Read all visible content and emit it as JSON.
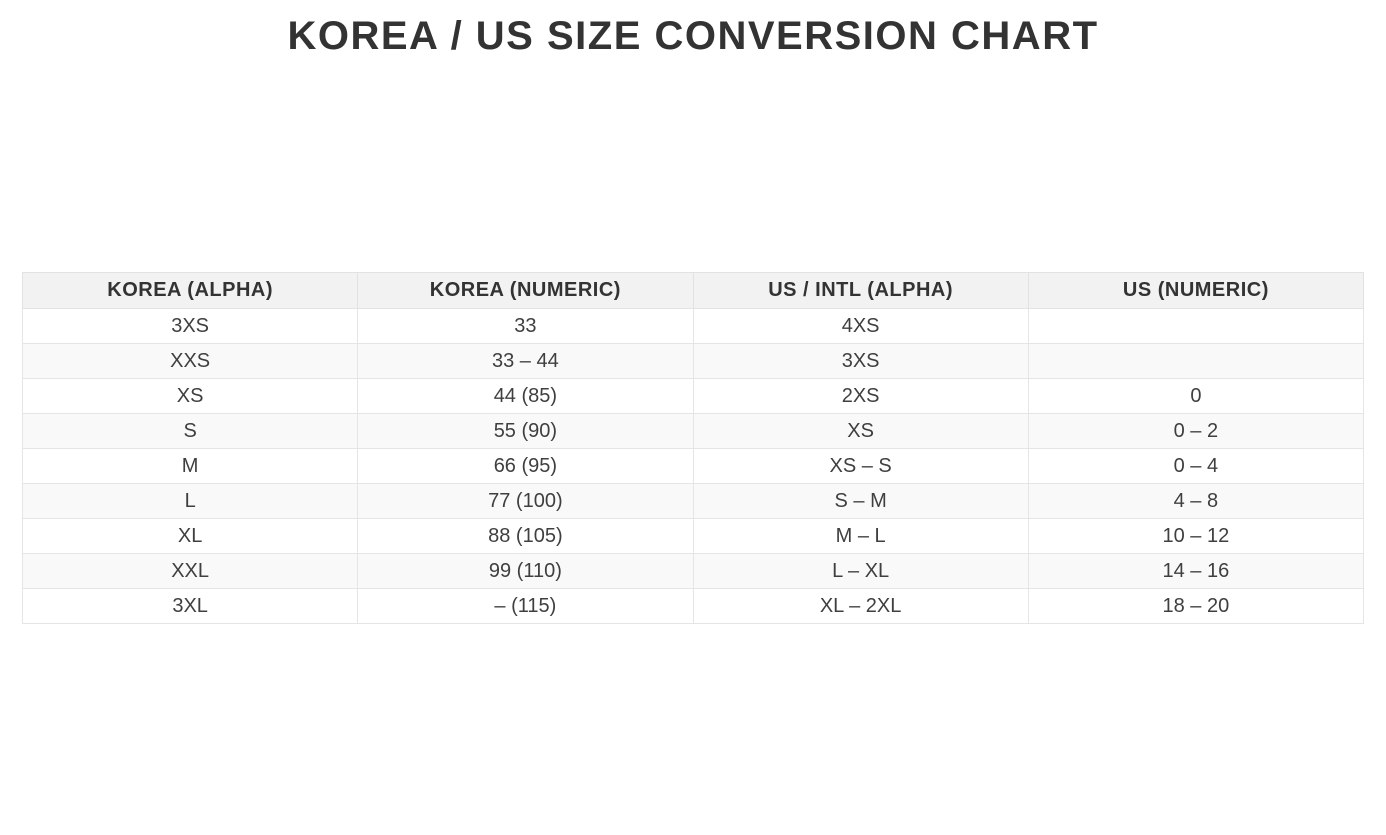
{
  "page": {
    "title": "KOREA / US SIZE CONVERSION CHART"
  },
  "table": {
    "columns": [
      "KOREA (ALPHA)",
      "KOREA (NUMERIC)",
      "US / INTL (ALPHA)",
      "US (NUMERIC)"
    ],
    "rows": [
      [
        "3XS",
        "33",
        "4XS",
        ""
      ],
      [
        "XXS",
        "33 – 44",
        "3XS",
        ""
      ],
      [
        "XS",
        "44 (85)",
        "2XS",
        "0"
      ],
      [
        "S",
        "55 (90)",
        "XS",
        "0 – 2"
      ],
      [
        "M",
        "66 (95)",
        "XS – S",
        "0 – 4"
      ],
      [
        "L",
        "77 (100)",
        "S – M",
        "4 – 8"
      ],
      [
        "XL",
        "88 (105)",
        "M – L",
        "10 – 12"
      ],
      [
        "XXL",
        "99 (110)",
        "L – XL",
        "14 – 16"
      ],
      [
        "3XL",
        "– (115)",
        "XL – 2XL",
        "18 – 20"
      ]
    ]
  },
  "chart_data": {
    "type": "table",
    "title": "KOREA / US SIZE CONVERSION CHART",
    "columns": [
      "KOREA (ALPHA)",
      "KOREA (NUMERIC)",
      "US / INTL (ALPHA)",
      "US (NUMERIC)"
    ],
    "rows": [
      [
        "3XS",
        "33",
        "4XS",
        ""
      ],
      [
        "XXS",
        "33 – 44",
        "3XS",
        ""
      ],
      [
        "XS",
        "44 (85)",
        "2XS",
        "0"
      ],
      [
        "S",
        "55 (90)",
        "XS",
        "0 – 2"
      ],
      [
        "M",
        "66 (95)",
        "XS – S",
        "0 – 4"
      ],
      [
        "L",
        "77 (100)",
        "S – M",
        "4 – 8"
      ],
      [
        "XL",
        "88 (105)",
        "M – L",
        "10 – 12"
      ],
      [
        "XXL",
        "99 (110)",
        "L – XL",
        "14 – 16"
      ],
      [
        "3XL",
        "– (115)",
        "XL – 2XL",
        "18 – 20"
      ]
    ],
    "layout": {
      "header_position": "top",
      "zebra_striping": true,
      "text_align": "center"
    }
  },
  "colors": {
    "header_bg": "#f2f2f2",
    "row_alt_bg": "#f9f9f9",
    "border": "#e5e5e5",
    "header_text": "#333333",
    "cell_text": "#3f3f3f",
    "title_text": "#333333",
    "page_bg": "#ffffff"
  }
}
